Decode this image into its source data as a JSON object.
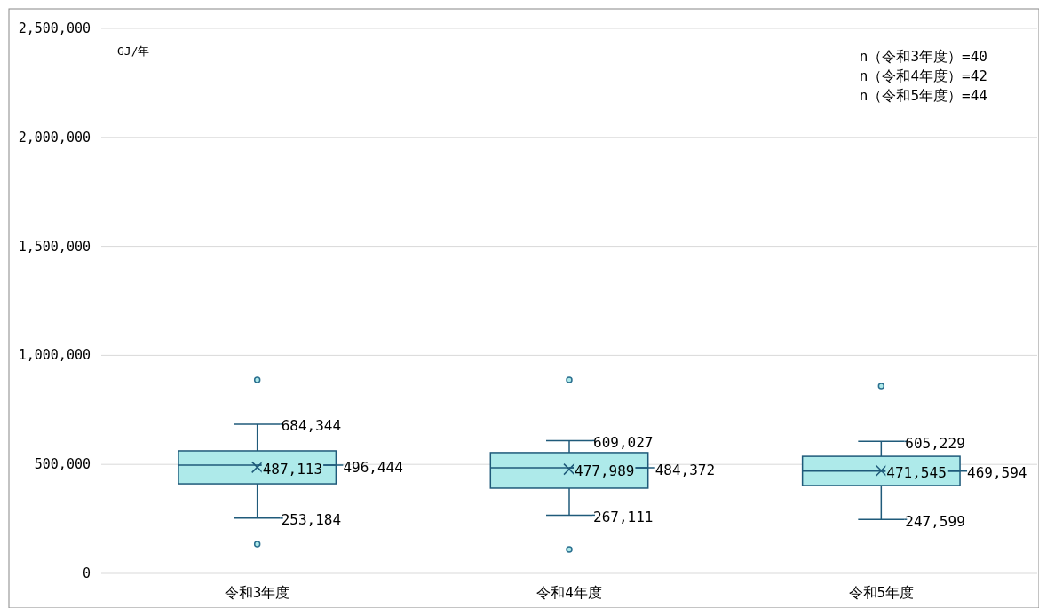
{
  "chart_data": {
    "type": "box",
    "ylabel": "GJ/年",
    "categories": [
      "令和3年度",
      "令和4年度",
      "令和5年度"
    ],
    "boxes": [
      {
        "low": 253184,
        "q1": 411000,
        "median": 496444,
        "q3": 562000,
        "high": 684344,
        "mean": 487113,
        "outliers": [
          888000,
          134000
        ]
      },
      {
        "low": 267111,
        "q1": 391000,
        "median": 484372,
        "q3": 554000,
        "high": 609027,
        "mean": 477989,
        "outliers": [
          888000,
          110000
        ]
      },
      {
        "low": 247599,
        "q1": 403000,
        "median": 469594,
        "q3": 537000,
        "high": 605229,
        "mean": 471545,
        "outliers": [
          859000
        ]
      }
    ],
    "color": "#aeeaea",
    "ylim": [
      0,
      2500000
    ],
    "yticks": [
      {
        "value": 0,
        "label": "0"
      },
      {
        "value": 500000,
        "label": "500,000"
      },
      {
        "value": 1000000,
        "label": "1,000,000"
      },
      {
        "value": 1500000,
        "label": "1,500,000"
      },
      {
        "value": 2000000,
        "label": "2,000,000"
      },
      {
        "value": 2500000,
        "label": "2,500,000"
      }
    ],
    "grid": "y",
    "annotations": [
      "n（令和3年度）=40",
      "n（令和4年度）=42",
      "n（令和5年度）=44",
      {
        "text": "684,344",
        "x": "令和3年度",
        "y": 684344
      },
      {
        "text": "487,113",
        "x": "令和3年度",
        "y": 487113
      },
      {
        "text": "496,444",
        "x": "令和3年度",
        "y": 496444
      },
      {
        "text": "253,184",
        "x": "令和3年度",
        "y": 253184
      },
      {
        "text": "609,027",
        "x": "令和4年度",
        "y": 609027
      },
      {
        "text": "477,989",
        "x": "令和4年度",
        "y": 477989
      },
      {
        "text": "484,372",
        "x": "令和4年度",
        "y": 484372
      },
      {
        "text": "267,111",
        "x": "令和4年度",
        "y": 267111
      },
      {
        "text": "605,229",
        "x": "令和5年度",
        "y": 605229
      },
      {
        "text": "471,545",
        "x": "令和5年度",
        "y": 471545
      },
      {
        "text": "469,594",
        "x": "令和5年度",
        "y": 469594
      },
      {
        "text": "247,599",
        "x": "令和5年度",
        "y": 247599
      }
    ]
  }
}
